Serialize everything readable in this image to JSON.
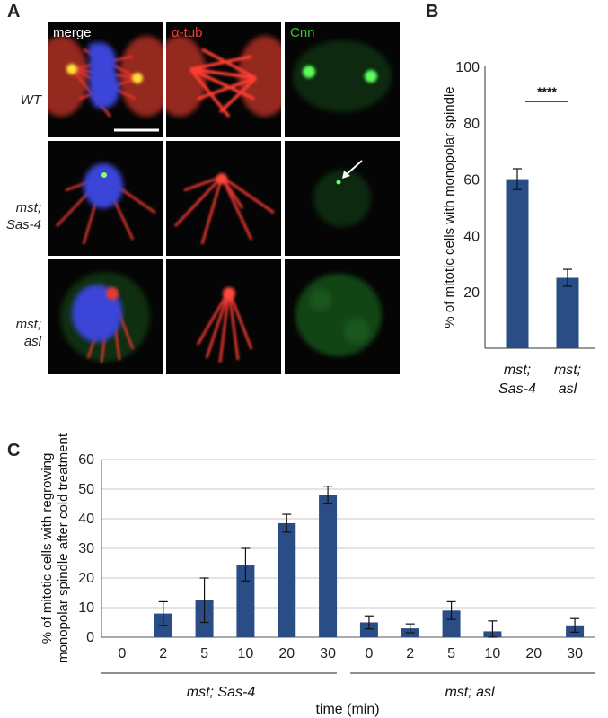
{
  "panels": {
    "a": "A",
    "b": "B",
    "c": "C"
  },
  "micrographs": {
    "columns": [
      {
        "label": "merge",
        "color": "#ffffff"
      },
      {
        "label": "α-tub",
        "color": "#e8403a"
      },
      {
        "label": "Cnn",
        "color": "#3cc23c"
      }
    ],
    "rows": [
      {
        "line1": "WT",
        "line2": ""
      },
      {
        "line1": "mst;",
        "line2": "Sas-4"
      },
      {
        "line1": "mst;",
        "line2": "asl"
      }
    ]
  },
  "chart_data": [
    {
      "type": "bar",
      "title": "",
      "ylabel": "% of mitotic cells with monopolar spindle",
      "xlabel": "",
      "ylim": [
        0,
        100
      ],
      "yticks": [
        20,
        40,
        60,
        80,
        100
      ],
      "categories": [
        {
          "line1": "mst;",
          "line2": "Sas-4"
        },
        {
          "line1": "mst;",
          "line2": "asl"
        }
      ],
      "values": [
        60,
        25
      ],
      "errors": [
        3.7,
        3
      ],
      "significance": "****",
      "bar_color": "#2b4d86",
      "grid": false
    },
    {
      "type": "bar",
      "title": "",
      "ylabel_line1": "% of mitotic cells with regrowing",
      "ylabel_line2": "monopolar spindle after cold treatment",
      "xlabel": "time (min)",
      "ylim": [
        0,
        60
      ],
      "yticks": [
        0,
        10,
        20,
        30,
        40,
        50,
        60
      ],
      "x": [
        0,
        2,
        5,
        10,
        20,
        30,
        0,
        2,
        5,
        10,
        20,
        30
      ],
      "groups": [
        {
          "name": "mst; Sas-4",
          "values": [
            0,
            8,
            12.5,
            24.5,
            38.5,
            48
          ],
          "errors": [
            0,
            4,
            7.5,
            5.5,
            3,
            3
          ]
        },
        {
          "name": "mst; asl",
          "values": [
            5,
            3,
            9,
            2,
            0,
            4
          ],
          "errors": [
            2.2,
            1.5,
            3,
            3.5,
            0,
            2.3
          ]
        }
      ],
      "bar_color": "#2b4d86",
      "grid": true
    }
  ]
}
